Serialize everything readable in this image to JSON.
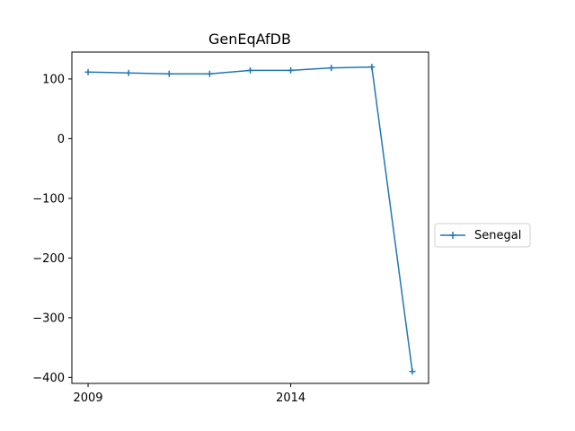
{
  "chart_data": {
    "type": "line",
    "title": "GenEqAfDB",
    "xlabel": "",
    "ylabel": "",
    "x": [
      2009,
      2010,
      2011,
      2012,
      2013,
      2014,
      2015,
      2016,
      2017
    ],
    "series": [
      {
        "name": "Senegal",
        "color": "#1f77b4",
        "marker": "plus",
        "values": [
          111.5,
          110.0,
          108.6,
          108.6,
          114.3,
          114.3,
          118.5,
          120.0,
          -390.0
        ]
      }
    ],
    "xlim": [
      2008.6,
      2017.4
    ],
    "ylim": [
      -410,
      145
    ],
    "xticks": [
      2009,
      2014
    ],
    "xtick_labels": [
      "2009",
      "2014"
    ],
    "yticks": [
      100,
      0,
      -100,
      -200,
      -300,
      -400
    ],
    "ytick_labels": [
      "100",
      "0",
      "−100",
      "−200",
      "−300",
      "−400"
    ],
    "grid": false,
    "legend_position": "right, outside plot area"
  }
}
